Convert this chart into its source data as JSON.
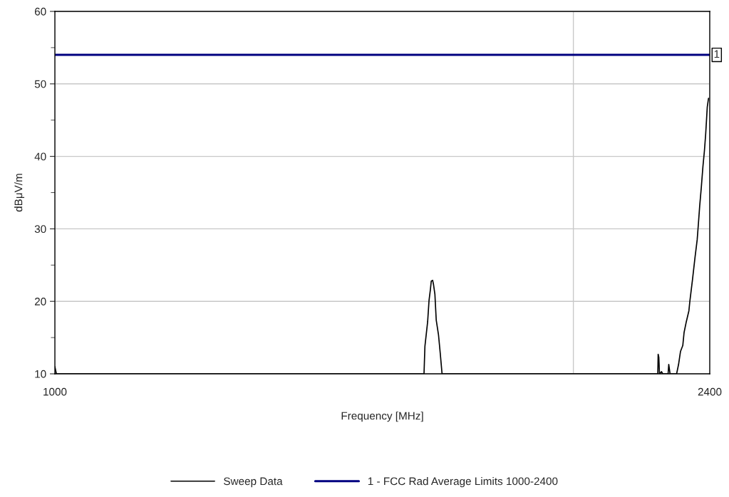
{
  "chart_data": {
    "type": "line",
    "xlabel": "Frequency [MHz]",
    "ylabel": "dBμV/m",
    "log": "x",
    "xlim": [
      1000,
      2400
    ],
    "xticks": [
      1000,
      {
        "value": 2000,
        "label": null
      },
      2400
    ],
    "ylim": [
      10,
      60
    ],
    "yticks": [
      10,
      {
        "value": 15,
        "label": null
      },
      20,
      {
        "value": 25,
        "label": null
      },
      30,
      {
        "value": 35,
        "label": null
      },
      40,
      {
        "value": 45,
        "label": null
      },
      50,
      {
        "value": 55,
        "label": null
      },
      60
    ],
    "grid": true,
    "legend": "bottom",
    "marker": "none",
    "line_style": "solid",
    "series": [
      {
        "name": "Sweep Data",
        "color": "#000000",
        "x": [
          1000,
          1002,
          1638,
          1640,
          1646,
          1649,
          1652,
          1654,
          1657,
          1659,
          1662,
          1665,
          1670,
          1674,
          1678,
          2239,
          2240,
          2242,
          2244,
          2250,
          2254,
          2258,
          2270,
          2272,
          2276,
          2296,
          2302,
          2308,
          2315,
          2319,
          2326,
          2334,
          2337,
          2345,
          2353,
          2360,
          2364,
          2368,
          2373,
          2378,
          2383,
          2387,
          2392,
          2396
        ],
        "values": [
          11,
          10,
          10,
          13.8,
          17.2,
          20.1,
          21.6,
          22.8,
          22.9,
          22.3,
          21.0,
          17.4,
          15.4,
          12.8,
          10,
          10,
          12.7,
          12.3,
          10,
          10.3,
          10,
          10,
          10,
          11.3,
          10,
          10,
          11.3,
          13.1,
          13.9,
          15.7,
          17.2,
          18.7,
          20.0,
          22.9,
          26.0,
          28.5,
          30.8,
          33.2,
          35.7,
          38.5,
          40.8,
          43.1,
          46.8,
          48.0
        ]
      },
      {
        "name": "1 - FCC Rad Average Limits 1000-2400",
        "color": "#000080",
        "x": [
          1000,
          2400
        ],
        "values": [
          54,
          54
        ]
      }
    ],
    "annotations": [
      {
        "text": "1",
        "x": 2400,
        "y": 54
      }
    ]
  }
}
